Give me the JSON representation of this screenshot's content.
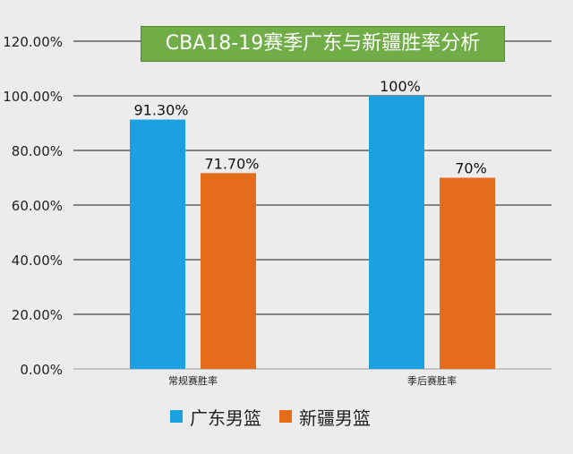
{
  "chart_data": {
    "type": "bar",
    "title": "CBA18-19赛季广东与新疆胜率分析",
    "categories": [
      "常规赛胜率",
      "季后赛胜率"
    ],
    "series": [
      {
        "name": "广东男篮",
        "values": [
          91.3,
          100
        ],
        "labels": [
          "91.30%",
          "100%"
        ],
        "color": "#1ba1e2"
      },
      {
        "name": "新疆男篮",
        "values": [
          71.7,
          70
        ],
        "labels": [
          "71.70%",
          "70%"
        ],
        "color": "#e46c1a"
      }
    ],
    "ylim": [
      0,
      120
    ],
    "yticks": [
      "0.00%",
      "20.00%",
      "40.00%",
      "60.00%",
      "80.00%",
      "100.00%",
      "120.00%"
    ],
    "grid": true,
    "legend_position": "bottom"
  }
}
